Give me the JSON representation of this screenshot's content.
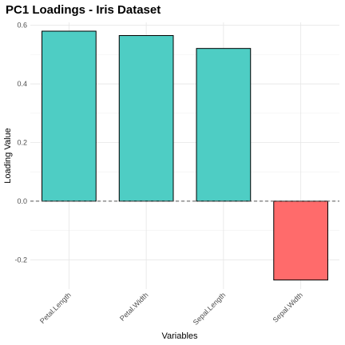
{
  "chart_data": {
    "type": "bar",
    "title": "PC1 Loadings - Iris Dataset",
    "xlabel": "Variables",
    "ylabel": "Loading Value",
    "categories": [
      "Petal.Length",
      "Petal.Width",
      "Sepal.Length",
      "Sepal.Width"
    ],
    "values": [
      0.58,
      0.565,
      0.521,
      -0.269
    ],
    "colors": [
      "#4ECDC4",
      "#4ECDC4",
      "#4ECDC4",
      "#FF6B6B"
    ],
    "bar_outline": "#000000",
    "ylim": [
      -0.3,
      0.61
    ],
    "yticks": [
      -0.2,
      0.0,
      0.2,
      0.4,
      0.6
    ],
    "ytick_labels": [
      "-0.2",
      "0.0",
      "0.2",
      "0.4",
      "0.6"
    ],
    "reference_line": {
      "y": 0,
      "style": "dashed",
      "color": "#555555"
    },
    "grid": true,
    "legend": "none"
  }
}
